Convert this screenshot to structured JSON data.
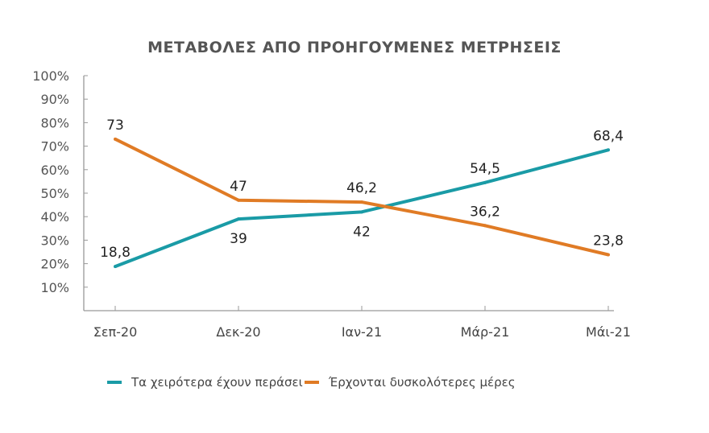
{
  "chart_data": {
    "type": "line",
    "title": "ΜΕΤΑΒΟΛΕΣ ΑΠΟ ΠΡΟΗΓΟΥΜΕΝΕΣ ΜΕΤΡΗΣΕΙΣ",
    "categories": [
      "Σεπ-20",
      "Δεκ-20",
      "Ιαν-21",
      "Μάρ-21",
      "Μάι-21"
    ],
    "ylim": [
      0,
      100
    ],
    "yticks": [
      "10%",
      "20%",
      "30%",
      "40%",
      "50%",
      "60%",
      "70%",
      "80%",
      "90%",
      "100%"
    ],
    "grid": false,
    "legend": "bottom",
    "series": [
      {
        "name": "Τα χειρότερα έχουν περάσει",
        "color": "#1a9ba6",
        "values": [
          18.8,
          39,
          42,
          54.5,
          68.4
        ],
        "labels": [
          "18,8",
          "39",
          "42",
          "54,5",
          "68,4"
        ],
        "label_pos": [
          "above",
          "below",
          "below",
          "above",
          "above"
        ]
      },
      {
        "name": "Έρχονται δυσκολότερες μέρες",
        "color": "#e07b25",
        "values": [
          73,
          47,
          46.2,
          36.2,
          23.8
        ],
        "labels": [
          "73",
          "47",
          "46,2",
          "36,2",
          "23,8"
        ],
        "label_pos": [
          "above",
          "above",
          "above",
          "above",
          "above"
        ]
      }
    ]
  }
}
